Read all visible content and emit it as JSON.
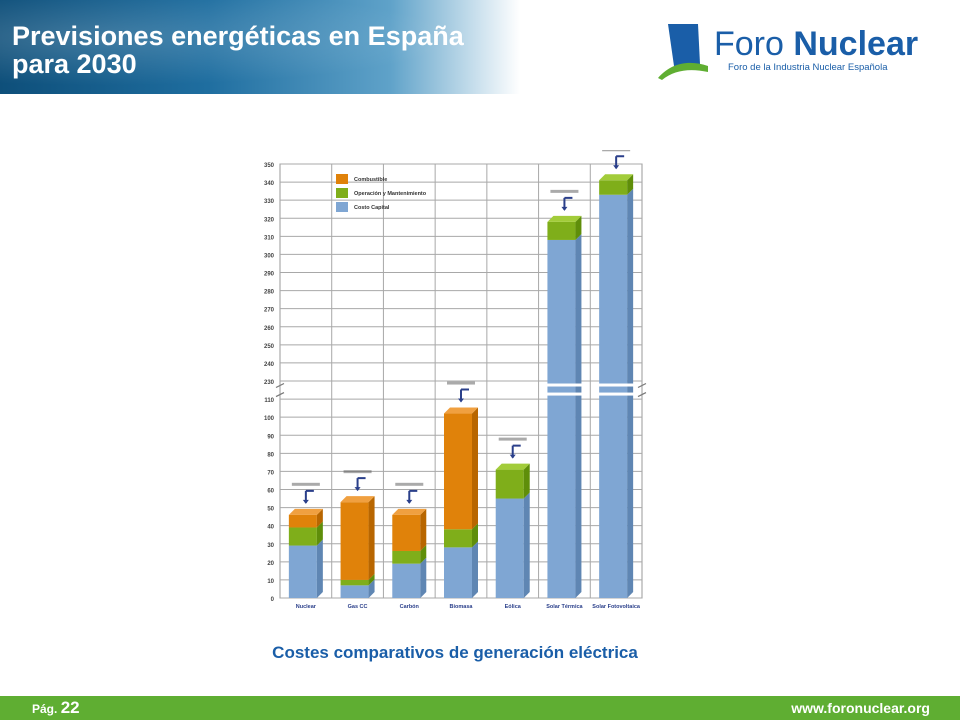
{
  "header": {
    "title": "Previsiones energéticas en España para 2030"
  },
  "logo": {
    "name_light": "Foro ",
    "name_bold": "Nuclear",
    "tagline": "Foro de la Industria Nuclear Española",
    "icon": "foro-nuclear-logo-mark"
  },
  "chart_data": {
    "type": "bar",
    "stacked": true,
    "title": "",
    "xlabel": "",
    "ylabel": "",
    "ylim": [
      0,
      350
    ],
    "axis_break": {
      "from": 110,
      "to": 230
    },
    "y_ticks": [
      "0",
      "10",
      "20",
      "30",
      "40",
      "50",
      "60",
      "70",
      "80",
      "90",
      "100",
      "110",
      "230",
      "240",
      "250",
      "260",
      "270",
      "280",
      "290",
      "300",
      "310",
      "320",
      "330",
      "340",
      "350"
    ],
    "categories": [
      "Nuclear",
      "Gas CC",
      "Carbón",
      "Biomasa",
      "Eólica",
      "Solar Térmica",
      "Solar Fotovoltaica"
    ],
    "series": [
      {
        "name": "Costo Capital",
        "color": "#7fa6d3",
        "values": [
          29,
          7,
          19,
          28,
          55,
          308,
          333
        ]
      },
      {
        "name": "Operación y Mantenimiento",
        "color": "#7fae1a",
        "values": [
          10,
          3,
          7,
          10,
          16,
          10,
          8
        ]
      },
      {
        "name": "Combustible",
        "color": "#e0820a",
        "values": [
          7,
          43,
          20,
          64,
          0,
          0,
          0
        ]
      }
    ],
    "legend": {
      "position": "top-left",
      "order": [
        "Combustible",
        "Operación y Mantenimiento",
        "Costo Capital"
      ]
    },
    "grid": true
  },
  "caption": "Costes comparativos de generación eléctrica",
  "footer": {
    "page_label": "Pág.",
    "page_number": "22",
    "url": "www.foronuclear.org"
  },
  "colors": {
    "footer_green": "#5fae32",
    "brand_blue": "#1a5ea8",
    "header_blue": "#0e4f7a"
  }
}
